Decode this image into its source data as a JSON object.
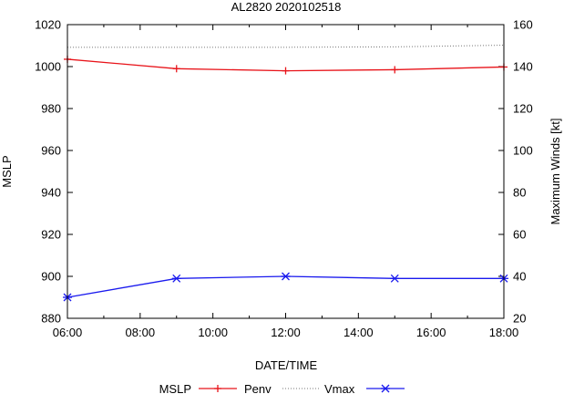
{
  "chart_data": {
    "type": "line",
    "title": "AL2820 2020102518",
    "xlabel": "DATE/TIME",
    "ylabel": "MSLP",
    "y2label": "Maximum Winds [kt]",
    "xlim": [
      6,
      18
    ],
    "ylim": [
      880,
      1020
    ],
    "y2lim": [
      20,
      160
    ],
    "x_ticks": [
      6,
      8,
      10,
      12,
      14,
      16,
      18
    ],
    "x_tick_labels": [
      "06:00",
      "08:00",
      "10:00",
      "12:00",
      "14:00",
      "16:00",
      "18:00"
    ],
    "y_ticks": [
      880,
      900,
      920,
      940,
      960,
      980,
      1000,
      1020
    ],
    "y_tick_labels": [
      "880",
      "900",
      "920",
      "940",
      "960",
      "980",
      "1000",
      "1020"
    ],
    "y2_ticks": [
      20,
      40,
      60,
      80,
      100,
      120,
      140,
      160
    ],
    "y2_tick_labels": [
      "20",
      "40",
      "60",
      "80",
      "100",
      "120",
      "140",
      "160"
    ],
    "legend_title": "MSLP",
    "series": [
      {
        "name": "Penv",
        "axis": "left",
        "style": "solid",
        "marker": "plus",
        "color": "#e8141a",
        "x": [
          6,
          9,
          12,
          15,
          18
        ],
        "values": [
          1003.5,
          999.0,
          998.0,
          998.5,
          999.8
        ]
      },
      {
        "name": "",
        "axis": "left",
        "style": "dotted",
        "marker": "none",
        "color": "#777777",
        "x": [
          6,
          9,
          12,
          15,
          18
        ],
        "values": [
          1009.2,
          1009.2,
          1009.2,
          1009.4,
          1010.2
        ]
      },
      {
        "name": "Vmax",
        "axis": "right",
        "style": "solid",
        "marker": "star",
        "color": "#1a1aee",
        "x": [
          6,
          9,
          12,
          15,
          18
        ],
        "values": [
          30,
          39,
          40,
          39,
          39
        ]
      }
    ]
  }
}
